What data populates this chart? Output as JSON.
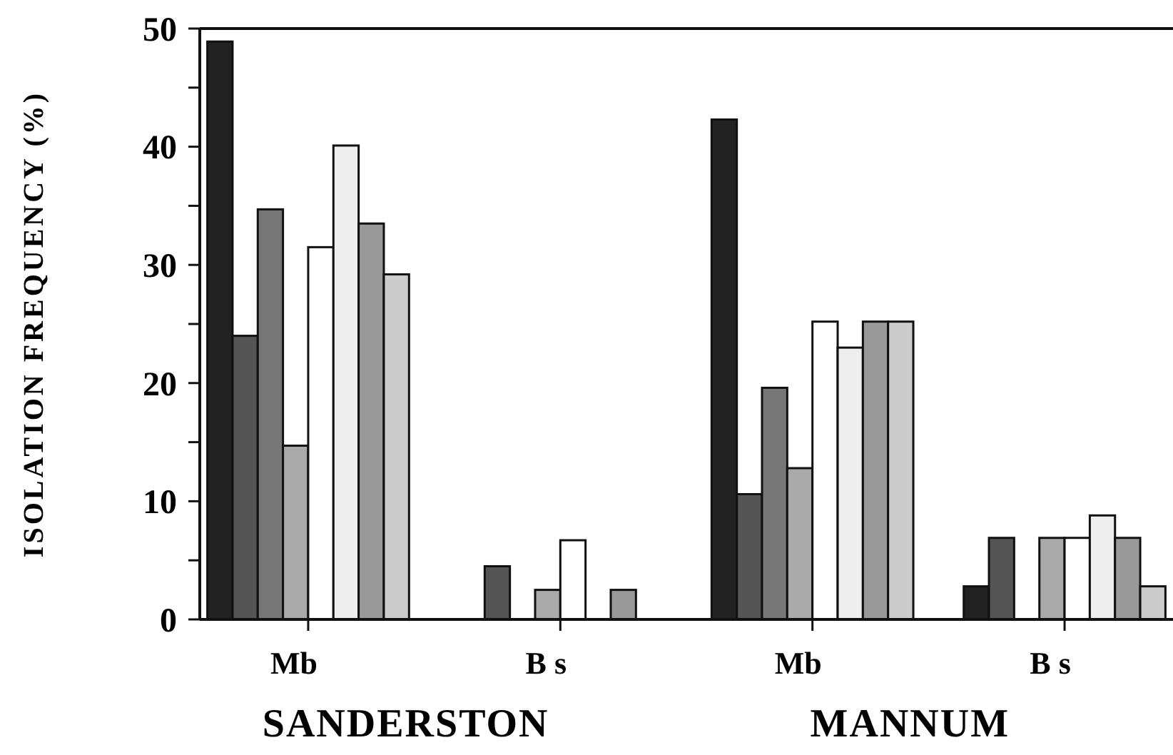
{
  "chart_data": {
    "type": "bar",
    "ylabel": "ISOLATION FREQUENCY (%)",
    "categories": [
      "Mb",
      "B s",
      "Mb",
      "B s"
    ],
    "series": [
      {
        "color": "#222222",
        "values": [
          48.9,
          0,
          42.3,
          2.8
        ]
      },
      {
        "color": "#555555",
        "values": [
          24.0,
          4.5,
          10.6,
          6.9
        ]
      },
      {
        "color": "#777777",
        "values": [
          34.7,
          0,
          19.6,
          0
        ]
      },
      {
        "color": "#aaaaaa",
        "values": [
          14.7,
          2.5,
          12.8,
          6.9
        ]
      },
      {
        "color": "#ffffff",
        "values": [
          31.5,
          6.7,
          25.2,
          6.9
        ]
      },
      {
        "color": "#eeeeee",
        "values": [
          40.1,
          0,
          23.0,
          8.8
        ]
      },
      {
        "color": "#999999",
        "values": [
          33.5,
          2.5,
          25.2,
          6.9
        ]
      },
      {
        "color": "#cccccc",
        "values": [
          29.2,
          0,
          25.2,
          2.8
        ]
      }
    ],
    "ylim": [
      0,
      50
    ],
    "yticks": [
      0,
      {
        "value": 5,
        "label": null
      },
      10,
      {
        "value": 15,
        "label": null
      },
      20,
      {
        "value": 25,
        "label": null
      },
      30,
      {
        "value": 35,
        "label": null
      },
      40,
      {
        "value": 45,
        "label": null
      },
      50
    ],
    "annotations": [
      "SANDERSTON",
      "MANNUM"
    ]
  }
}
